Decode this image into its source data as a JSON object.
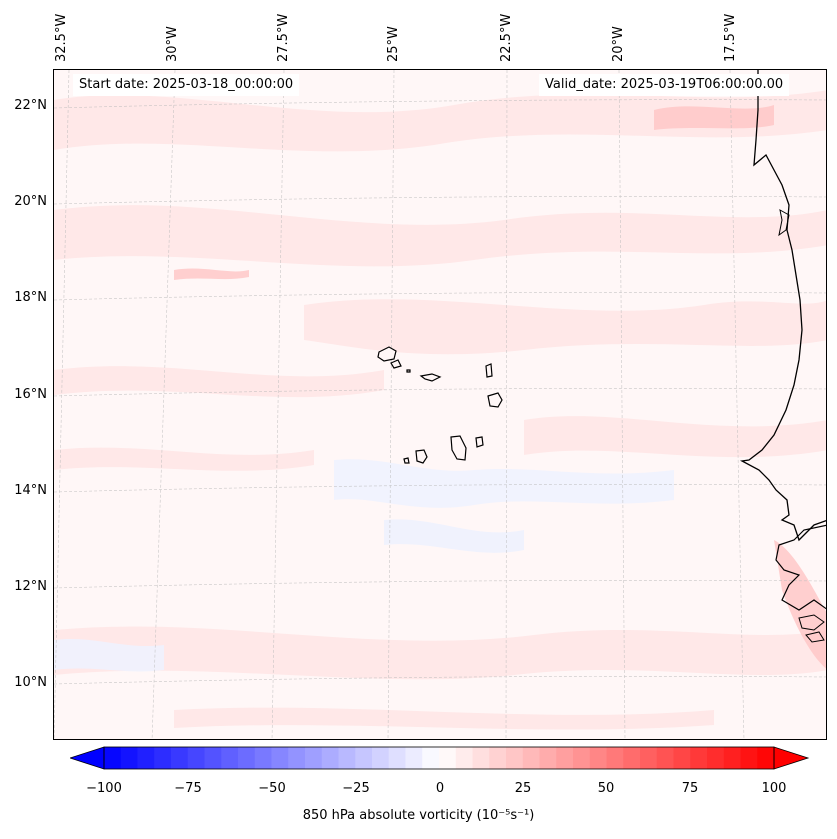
{
  "map": {
    "start_date": "Start date: 2025-03-18_00:00:00",
    "valid_date": "Valid_date: 2025-03-19T06:00:00.00",
    "lon_labels": [
      "32.5°W",
      "30°W",
      "27.5°W",
      "25°W",
      "22.5°W",
      "20°W",
      "17.5°W"
    ],
    "lat_labels": [
      "22°N",
      "20°N",
      "18°N",
      "16°N",
      "14°N",
      "12°N",
      "10°N"
    ],
    "colors": {
      "positive": "#ff0000",
      "negative": "#0000ff",
      "neutral": "#ffffff",
      "coast": "#000000"
    }
  },
  "colorbar": {
    "ticks": [
      "−100",
      "−75",
      "−50",
      "−25",
      "0",
      "25",
      "50",
      "75",
      "100"
    ],
    "min": -100,
    "max": 100,
    "step": 5,
    "label": "850 hPa absolute vorticity (10⁻⁵s⁻¹)"
  }
}
